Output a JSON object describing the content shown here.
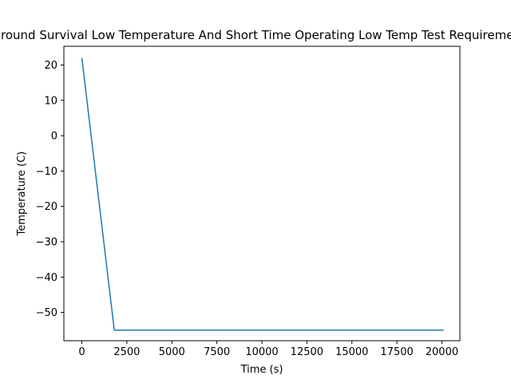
{
  "chart_data": {
    "type": "line",
    "title": "Ground Survival Low Temperature And Short Time Operating Low Temp Test Requirements",
    "xlabel": "Time (s)",
    "ylabel": "Temperature (C)",
    "xlim": [
      -1000,
      21000
    ],
    "ylim": [
      -58,
      25.3
    ],
    "x_ticks": [
      0,
      2500,
      5000,
      7500,
      10000,
      12500,
      15000,
      17500,
      20000
    ],
    "y_ticks": [
      20,
      10,
      0,
      -10,
      -20,
      -30,
      -40,
      -50
    ],
    "x_tick_labels": [
      "0",
      "2500",
      "5000",
      "7500",
      "10000",
      "12500",
      "15000",
      "17500",
      "20000"
    ],
    "y_tick_labels": [
      "20",
      "10",
      "0",
      "−10",
      "−20",
      "−30",
      "−40",
      "−50"
    ],
    "grid": false,
    "series": [
      {
        "color": "#1f77b4",
        "x": [
          0,
          1800,
          20100
        ],
        "y": [
          22,
          -55,
          -55
        ]
      }
    ]
  }
}
